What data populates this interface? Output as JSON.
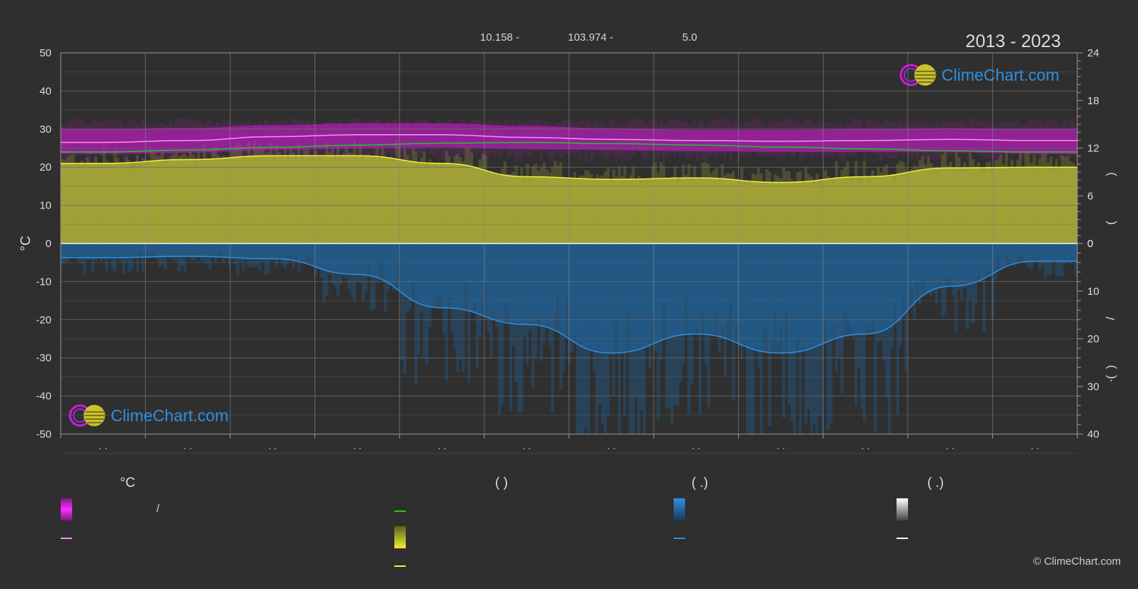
{
  "header": {
    "lat": "10.158 -",
    "lon": "103.974 -",
    "elev": "5.0",
    "years": "2013 - 2023"
  },
  "logo": {
    "text": "ClimeChart.com"
  },
  "copyright": "© ClimeChart.com",
  "legend": {
    "col1_head": "°C",
    "col2_head": "(          )",
    "col3_head": "(   .)",
    "col4_head": "(   .)",
    "slash": "/"
  },
  "colors": {
    "bg": "#2f2f2f",
    "temp_band": "#d21bd6",
    "temp_line": "#ff8cff",
    "sea_line": "#22c52a",
    "sun_fill": "#b8b83a",
    "sun_line": "#f2f23a",
    "rain_fill": "#1f6aa8",
    "rain_line": "#2f90e0",
    "grid": "#6a6a6a"
  },
  "chart_data": {
    "type": "area",
    "left_axis": {
      "label": "°C",
      "ylim": [
        -50,
        50
      ],
      "ticks": [
        50,
        40,
        30,
        20,
        10,
        0,
        -10,
        -20,
        -30,
        -40,
        -50
      ]
    },
    "right_axis_top": {
      "ylim": [
        0,
        24
      ],
      "ticks": [
        24,
        18,
        12,
        6,
        0
      ]
    },
    "right_axis_bottom": {
      "ylim": [
        0,
        40
      ],
      "ticks": [
        0,
        10,
        20,
        30,
        40
      ]
    },
    "right_axis_labels": [
      ")",
      "(",
      "/",
      ")",
      "(",
      "·"
    ],
    "x_ticks": [
      "· ·",
      "· ·",
      "· ·",
      "· ·",
      "· ·",
      "· ·",
      "· ·",
      "· ·",
      "· ·",
      "· ·",
      "· ·",
      "· ·"
    ],
    "series": [
      {
        "key": "temp_mean",
        "values": [
          26.5,
          27.0,
          28.0,
          28.5,
          28.5,
          27.8,
          27.3,
          27.0,
          26.8,
          27.0,
          27.3,
          27.0
        ]
      },
      {
        "key": "temp_max",
        "values": [
          30.0,
          30.3,
          31.0,
          31.5,
          31.5,
          30.8,
          30.2,
          29.8,
          29.8,
          30.0,
          30.2,
          30.0
        ]
      },
      {
        "key": "temp_min",
        "values": [
          23.5,
          23.8,
          24.5,
          25.0,
          25.2,
          24.8,
          24.5,
          24.2,
          24.0,
          24.0,
          24.0,
          23.5
        ]
      },
      {
        "key": "sea_temp",
        "values": [
          24.0,
          24.5,
          25.2,
          25.8,
          26.3,
          26.5,
          26.2,
          25.8,
          25.3,
          24.8,
          24.3,
          24.0
        ]
      },
      {
        "key": "sunshine_daily_c",
        "values": [
          21.0,
          22.0,
          23.0,
          23.0,
          21.0,
          17.5,
          16.8,
          17.2,
          16.0,
          17.5,
          19.8,
          20.0
        ]
      },
      {
        "key": "rain_mm",
        "values": [
          3.0,
          2.7,
          3.2,
          6.5,
          13.5,
          17.0,
          23.0,
          19.0,
          23.0,
          19.0,
          9.0,
          3.7
        ]
      }
    ]
  }
}
